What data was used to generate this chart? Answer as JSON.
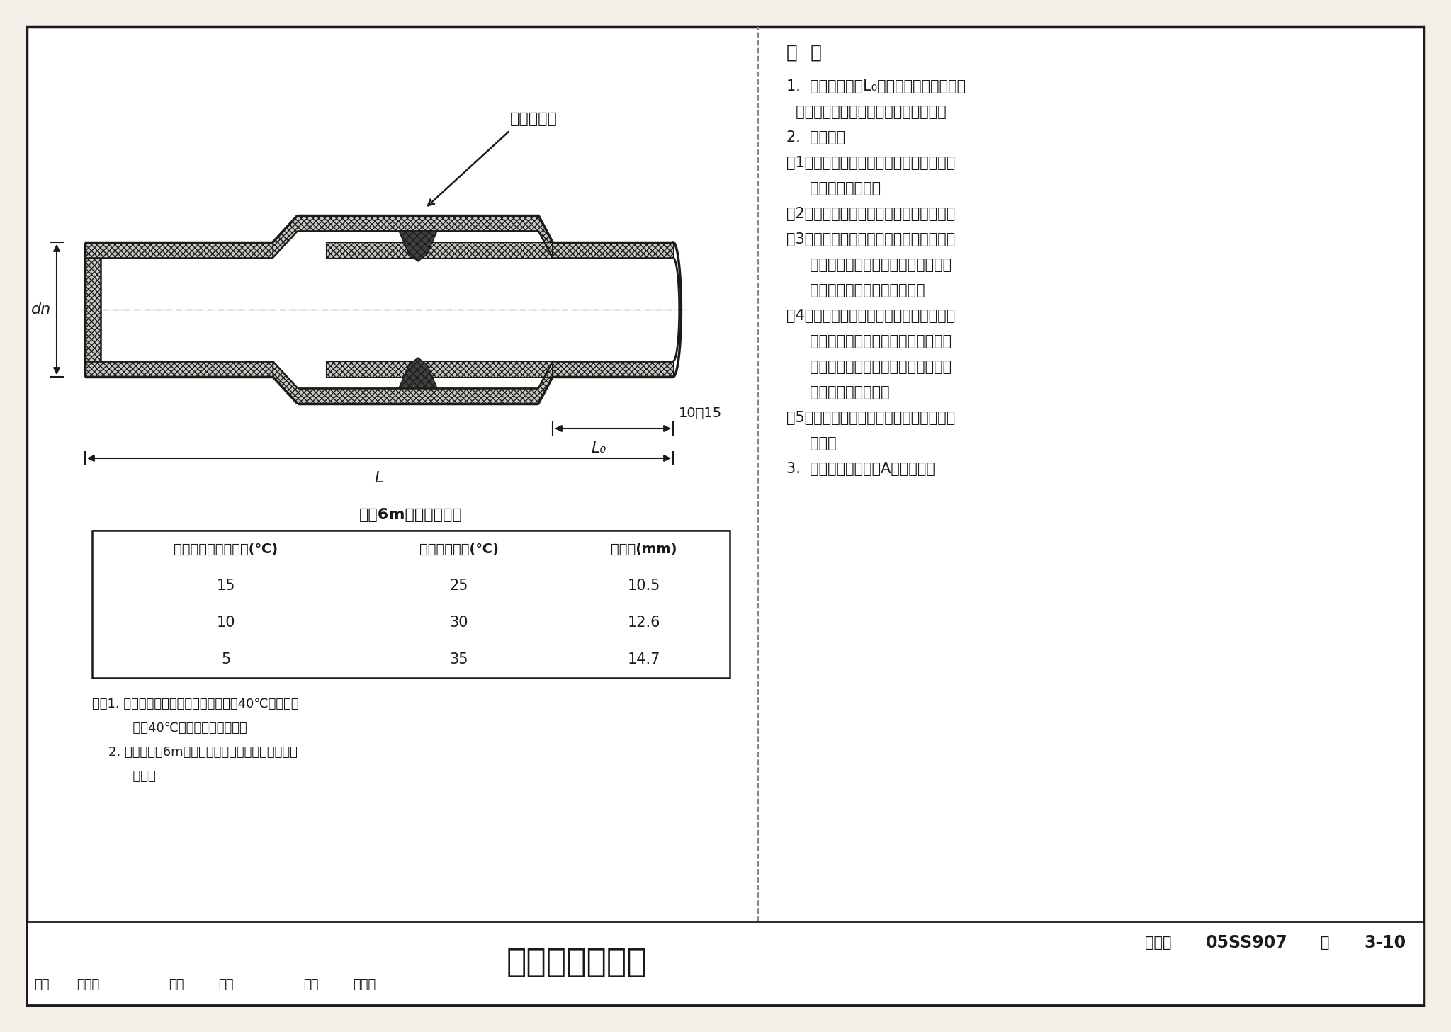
{
  "bg_color": "#f2efe9",
  "white": "#ffffff",
  "black": "#1a1a1a",
  "title_main": "橡胶圈柔性连接",
  "atlas_no_label": "图集号",
  "atlas_no": "05SS907",
  "page_label": "页",
  "page_no": "3-10",
  "staff_labels": [
    "审核",
    "肖審书",
    "校对",
    "黄波",
    "设计",
    "闫利国"
  ],
  "table_title": "管长6m的管端伸缩量",
  "table_headers": [
    "施工时最低环境温度(℃)",
    "设计最大温差(℃)",
    "伸缩量(mm)"
  ],
  "table_rows": [
    [
      "15",
      "25",
      "10.5"
    ],
    [
      "10",
      "30",
      "12.6"
    ],
    [
      "5",
      "35",
      "14.7"
    ]
  ],
  "note_lines": [
    "注：1. 管道运行中的内外介质最高温度按40℃计算，如",
    "          大于40℃时按实际温差调整。",
    "    2. 管长不等于6m时，伸缩量可按照实际管长依比例",
    "          调整。"
  ],
  "remarks_title": "说  明",
  "remarks": [
    [
      "1.",
      "  管端插入长度L₀应考虑由于温差产生的"
    ],
    [
      "",
      "  伸缩量。一般情况下可按左下表采用。"
    ],
    [
      "2.",
      "  安装要求"
    ],
    [
      "（1）",
      "清理干净承插口工作面，由上表划出"
    ],
    [
      "",
      "     插入长度标记线。"
    ],
    [
      "（2）",
      "正确安装橡胶圈，不得装反或扭曲。"
    ],
    [
      "（3）",
      "把润滑剂均匀涂于承口处、橡胶圈和"
    ],
    [
      "",
      "     管插口端外表面，严禁用黄油及其他"
    ],
    [
      "",
      "     油类作润滑剂以防腐蚀胶圈。"
    ],
    [
      "（4）",
      "将连接管道的插口对准承口，使用拉"
    ],
    [
      "",
      "     力工具，将管在平直状态下一次插入"
    ],
    [
      "",
      "     至标线。若插入阻力过大，应及时检"
    ],
    [
      "",
      "     查橡胶圈是否正常。"
    ],
    [
      "（5）",
      "用塞尺沿管材周围检查安装情况是否"
    ],
    [
      "",
      "     正常。"
    ],
    [
      "3.",
      "  柔性连接推荐采用A型橡胶圈。"
    ]
  ],
  "callout_text": "橡胶密封圈",
  "dim_lb": "L₀",
  "dim_10_15": "10～15",
  "dim_L": "L",
  "dim_dn": "dn"
}
